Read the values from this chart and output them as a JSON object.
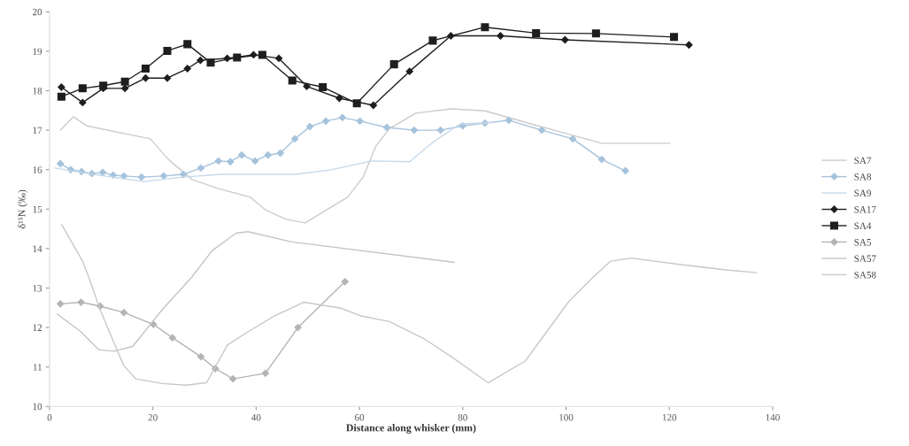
{
  "chart_data": {
    "type": "line",
    "xlabel": "Distance along whisker (mm)",
    "ylabel": "δ¹⁵N (‰)",
    "xlim": [
      0,
      140
    ],
    "xticks": [
      0,
      20,
      40,
      60,
      80,
      100,
      120,
      140
    ],
    "ylim": [
      10,
      20
    ],
    "yticks": [
      10,
      11,
      12,
      13,
      14,
      15,
      16,
      17,
      18,
      19,
      20
    ],
    "legend": "right",
    "line_style": "solid",
    "series": [
      {
        "name": "SA7",
        "color": "#cccccc",
        "marker": "none",
        "x": [
          2.1,
          4.6,
          7.2,
          19.5,
          23.0,
          27.6,
          32.7,
          38.9,
          41.8,
          45.8,
          49.5,
          54.3,
          57.7,
          60.7,
          63.2,
          65.8,
          70.9,
          77.8,
          84.3,
          93.2,
          101.3,
          106.9,
          120.1
        ],
        "values": [
          17.0,
          17.34,
          17.11,
          16.78,
          16.26,
          15.75,
          15.52,
          15.3,
          14.98,
          14.74,
          14.65,
          15.03,
          15.3,
          15.81,
          16.6,
          17.04,
          17.43,
          17.54,
          17.49,
          17.16,
          16.87,
          16.67,
          16.67
        ]
      },
      {
        "name": "SA8",
        "color": "#a6c3dc",
        "marker": "diamond",
        "x": [
          2.1,
          4.1,
          6.2,
          8.2,
          10.3,
          12.3,
          14.4,
          17.8,
          22.1,
          25.9,
          29.3,
          32.7,
          35.0,
          37.2,
          39.8,
          42.3,
          44.7,
          47.5,
          50.4,
          53.5,
          56.7,
          60.1,
          65.3,
          70.6,
          75.7,
          80.0,
          84.3,
          88.9,
          95.3,
          101.3,
          106.9,
          111.5
        ],
        "values": [
          16.15,
          16.0,
          15.95,
          15.9,
          15.93,
          15.86,
          15.84,
          15.81,
          15.84,
          15.88,
          16.04,
          16.22,
          16.2,
          16.37,
          16.22,
          16.37,
          16.42,
          16.78,
          17.09,
          17.23,
          17.32,
          17.23,
          17.07,
          17.0,
          17.0,
          17.11,
          17.18,
          17.25,
          17.0,
          16.78,
          16.26,
          15.97
        ]
      },
      {
        "name": "SA9",
        "color": "#c6d9ea",
        "marker": "none",
        "x": [
          1.0,
          7.5,
          14.4,
          18.3,
          25.9,
          33.2,
          41.8,
          47.5,
          54.3,
          62.4,
          69.7,
          74.4,
          79.5,
          86.4
        ],
        "values": [
          16.04,
          15.9,
          15.77,
          15.7,
          15.81,
          15.88,
          15.88,
          15.88,
          15.99,
          16.22,
          16.2,
          16.71,
          17.16,
          17.2
        ]
      },
      {
        "name": "SA17",
        "color": "#1e1e1e",
        "marker": "diamond",
        "x": [
          2.3,
          6.4,
          10.4,
          14.6,
          18.6,
          22.8,
          26.7,
          29.2,
          34.4,
          39.5,
          44.4,
          49.8,
          56.1,
          62.7,
          69.7,
          77.7,
          87.3,
          99.8,
          123.8
        ],
        "values": [
          18.09,
          17.7,
          18.06,
          18.06,
          18.32,
          18.32,
          18.56,
          18.77,
          18.82,
          18.91,
          18.82,
          18.11,
          17.81,
          17.63,
          18.49,
          19.39,
          19.39,
          19.29,
          19.16
        ]
      },
      {
        "name": "SA4",
        "color": "#1e1e1e",
        "marker": "square",
        "x": [
          2.3,
          6.4,
          10.4,
          14.6,
          18.6,
          22.8,
          26.7,
          31.2,
          36.3,
          41.2,
          47.0,
          52.9,
          59.5,
          66.7,
          74.2,
          84.3,
          94.2,
          105.8,
          120.9
        ],
        "values": [
          17.85,
          18.06,
          18.13,
          18.23,
          18.56,
          19.01,
          19.18,
          18.71,
          18.84,
          18.91,
          18.26,
          18.09,
          17.68,
          18.67,
          19.27,
          19.61,
          19.46,
          19.45,
          19.36
        ]
      },
      {
        "name": "SA5",
        "color": "#b4b4b4",
        "marker": "diamond",
        "x": [
          2.1,
          6.1,
          9.8,
          14.4,
          20.1,
          23.8,
          29.3,
          32.1,
          35.5,
          41.8,
          48.1,
          57.2
        ],
        "values": [
          12.6,
          12.64,
          12.54,
          12.38,
          12.08,
          11.74,
          11.26,
          10.96,
          10.7,
          10.84,
          12.0,
          13.16
        ]
      },
      {
        "name": "SA57",
        "color": "#c4c4c4",
        "marker": "none",
        "x": [
          1.5,
          6.1,
          9.5,
          12.4,
          16.1,
          21.8,
          27.5,
          31.5,
          36.1,
          38.4,
          46.9,
          78.4
        ],
        "values": [
          12.34,
          11.89,
          11.44,
          11.4,
          11.52,
          12.45,
          13.27,
          13.95,
          14.39,
          14.43,
          14.17,
          13.65
        ]
      },
      {
        "name": "SA58",
        "color": "#c8c8c8",
        "marker": "none",
        "x": [
          2.3,
          6.4,
          7.5,
          9.8,
          12.4,
          14.4,
          16.7,
          21.8,
          26.4,
          30.4,
          34.4,
          38.4,
          43.5,
          49.2,
          56.4,
          60.1,
          65.8,
          72.7,
          77.8,
          84.9,
          92.1,
          100.6,
          105.2,
          108.6,
          112.6,
          121.2,
          130.9,
          136.9
        ],
        "values": [
          14.62,
          13.68,
          13.31,
          12.45,
          11.63,
          11.03,
          10.7,
          10.58,
          10.54,
          10.6,
          11.55,
          11.89,
          12.29,
          12.64,
          12.49,
          12.3,
          12.15,
          11.7,
          11.26,
          10.6,
          11.15,
          12.67,
          13.27,
          13.68,
          13.76,
          13.61,
          13.46,
          13.39
        ]
      }
    ]
  }
}
